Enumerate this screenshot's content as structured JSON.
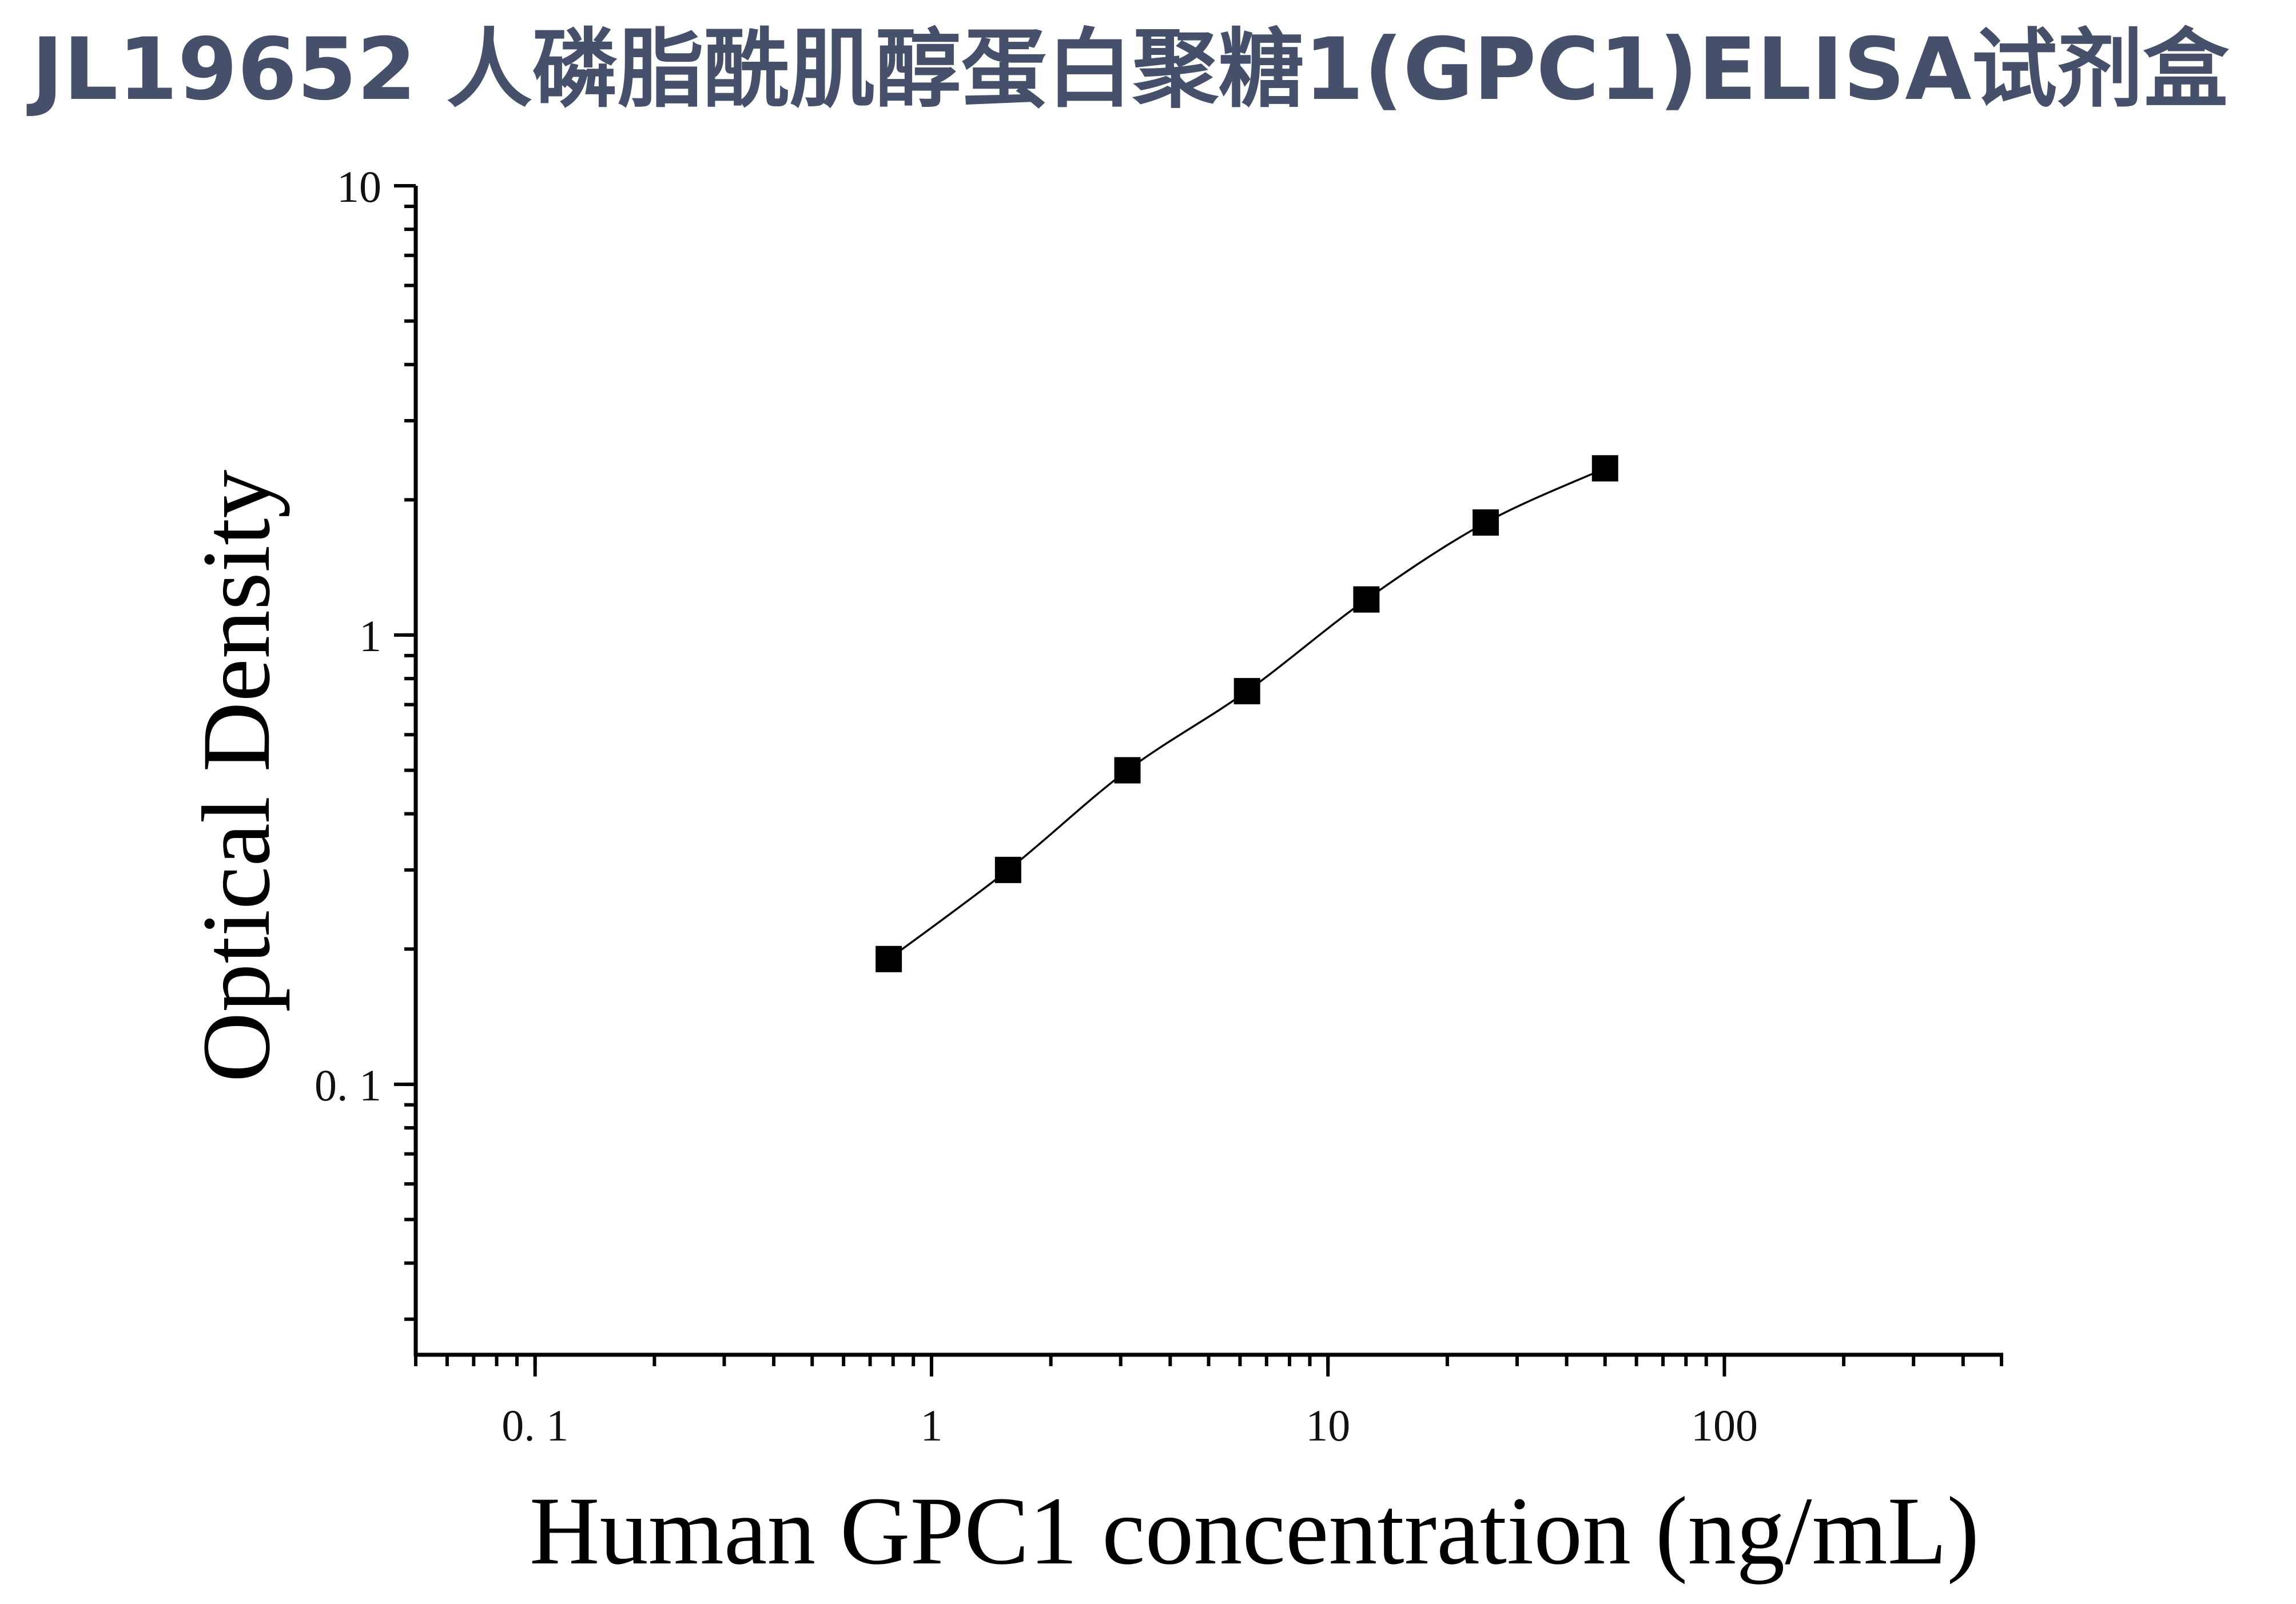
{
  "chart_data": {
    "type": "scatter",
    "title": "JL19652 人磷脂酰肌醇蛋白聚糖1(GPC1)ELISA试剂盒",
    "xlabel": "Human GPC1 concentration (ng/mL)",
    "ylabel": "Optical Density",
    "x_scale": "log",
    "y_scale": "log",
    "xlim": [
      0.05,
      500
    ],
    "ylim": [
      0.025,
      10
    ],
    "x_ticks": [
      {
        "value": 0.1,
        "label": "0. 1"
      },
      {
        "value": 1,
        "label": "1"
      },
      {
        "value": 10,
        "label": "10"
      },
      {
        "value": 100,
        "label": "100"
      }
    ],
    "y_ticks": [
      {
        "value": 0.1,
        "label": "0. 1"
      },
      {
        "value": 1,
        "label": "1"
      },
      {
        "value": 10,
        "label": "10"
      }
    ],
    "grid": false,
    "marker": "square",
    "marker_color": "#000000",
    "curve_color": "#000000",
    "series": [
      {
        "x": [
          0.78,
          1.56,
          3.12,
          6.25,
          12.5,
          25,
          50
        ],
        "y": [
          0.19,
          0.3,
          0.5,
          0.75,
          1.2,
          1.78,
          2.35
        ]
      }
    ]
  }
}
